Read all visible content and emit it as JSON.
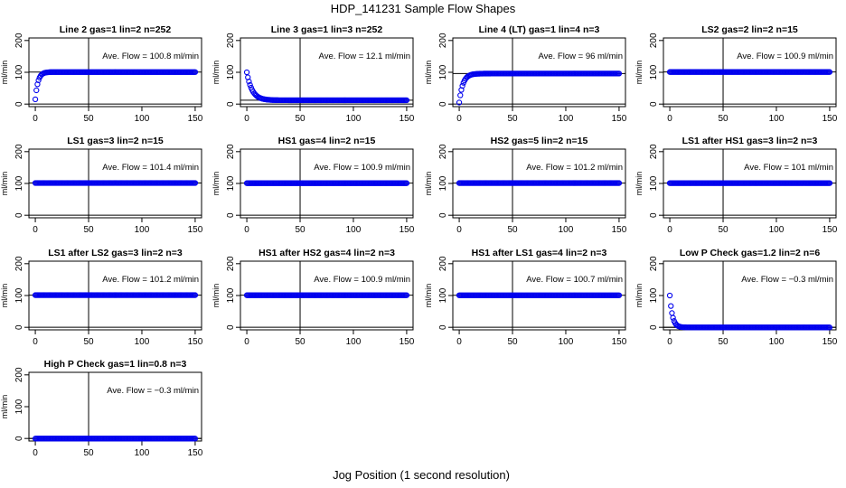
{
  "figure": {
    "title": "HDP_141231  Sample Flow Shapes",
    "xlabel": "Jog Position (1 second resolution)",
    "ylabel": "ml/min",
    "colors": {
      "points": "#0000ee",
      "axes": "#000000",
      "background": "#ffffff"
    }
  },
  "chart_data": [
    {
      "type": "scatter",
      "title": "Line 2 gas=1 lin=2 n=252",
      "annotation": "Ave. Flow =  100.8  ml/min",
      "mean": 100.8,
      "shape": "rise",
      "start": 15,
      "tau": 2.5,
      "xlim": [
        0,
        150
      ],
      "ylim": [
        0,
        200
      ],
      "xticks": [
        0,
        50,
        100,
        150
      ],
      "yticks": [
        0,
        100,
        200
      ],
      "vline": 50
    },
    {
      "type": "scatter",
      "title": "Line 3 gas=1 lin=3 n=252",
      "annotation": "Ave. Flow =  12.1  ml/min",
      "mean": 12.1,
      "shape": "fall",
      "start": 100,
      "end": 12.1,
      "tau": 5,
      "xlim": [
        0,
        150
      ],
      "ylim": [
        0,
        200
      ],
      "xticks": [
        0,
        50,
        100,
        150
      ],
      "yticks": [
        0,
        100,
        200
      ],
      "vline": 50
    },
    {
      "type": "scatter",
      "title": "Line 4 (LT) gas=1 lin=4 n=3",
      "annotation": "Ave. Flow =  96  ml/min",
      "mean": 96,
      "shape": "rise",
      "start": 5,
      "tau": 3.5,
      "xlim": [
        0,
        150
      ],
      "ylim": [
        0,
        200
      ],
      "xticks": [
        0,
        50,
        100,
        150
      ],
      "yticks": [
        0,
        100,
        200
      ],
      "vline": 50
    },
    {
      "type": "scatter",
      "title": "LS2 gas=2 lin=2 n=15",
      "annotation": "Ave. Flow =  100.9  ml/min",
      "mean": 100.9,
      "shape": "flat",
      "xlim": [
        0,
        150
      ],
      "ylim": [
        0,
        200
      ],
      "xticks": [
        0,
        50,
        100,
        150
      ],
      "yticks": [
        0,
        100,
        200
      ],
      "vline": 50
    },
    {
      "type": "scatter",
      "title": "LS1 gas=3 lin=2 n=15",
      "annotation": "Ave. Flow =  101.4  ml/min",
      "mean": 101.4,
      "shape": "flat",
      "xlim": [
        0,
        150
      ],
      "ylim": [
        0,
        200
      ],
      "xticks": [
        0,
        50,
        100,
        150
      ],
      "yticks": [
        0,
        100,
        200
      ],
      "vline": 50
    },
    {
      "type": "scatter",
      "title": "HS1 gas=4 lin=2 n=15",
      "annotation": "Ave. Flow =  100.9  ml/min",
      "mean": 100.9,
      "shape": "flat",
      "xlim": [
        0,
        150
      ],
      "ylim": [
        0,
        200
      ],
      "xticks": [
        0,
        50,
        100,
        150
      ],
      "yticks": [
        0,
        100,
        200
      ],
      "vline": 50
    },
    {
      "type": "scatter",
      "title": "HS2 gas=5 lin=2 n=15",
      "annotation": "Ave. Flow =  101.2  ml/min",
      "mean": 101.2,
      "shape": "flat",
      "xlim": [
        0,
        150
      ],
      "ylim": [
        0,
        200
      ],
      "xticks": [
        0,
        50,
        100,
        150
      ],
      "yticks": [
        0,
        100,
        200
      ],
      "vline": 50
    },
    {
      "type": "scatter",
      "title": "LS1 after HS1 gas=3 lin=2 n=3",
      "annotation": "Ave. Flow =  101  ml/min",
      "mean": 101,
      "shape": "flat",
      "xlim": [
        0,
        150
      ],
      "ylim": [
        0,
        200
      ],
      "xticks": [
        0,
        50,
        100,
        150
      ],
      "yticks": [
        0,
        100,
        200
      ],
      "vline": 50
    },
    {
      "type": "scatter",
      "title": "LS1 after LS2 gas=3 lin=2 n=3",
      "annotation": "Ave. Flow =  101.2  ml/min",
      "mean": 101.2,
      "shape": "flat",
      "xlim": [
        0,
        150
      ],
      "ylim": [
        0,
        200
      ],
      "xticks": [
        0,
        50,
        100,
        150
      ],
      "yticks": [
        0,
        100,
        200
      ],
      "vline": 50
    },
    {
      "type": "scatter",
      "title": "HS1 after HS2 gas=4 lin=2 n=3",
      "annotation": "Ave. Flow =  100.9  ml/min",
      "mean": 100.9,
      "shape": "flat",
      "xlim": [
        0,
        150
      ],
      "ylim": [
        0,
        200
      ],
      "xticks": [
        0,
        50,
        100,
        150
      ],
      "yticks": [
        0,
        100,
        200
      ],
      "vline": 50
    },
    {
      "type": "scatter",
      "title": "HS1 after LS1 gas=4 lin=2 n=3",
      "annotation": "Ave. Flow =  100.7  ml/min",
      "mean": 100.7,
      "shape": "flat",
      "xlim": [
        0,
        150
      ],
      "ylim": [
        0,
        200
      ],
      "xticks": [
        0,
        50,
        100,
        150
      ],
      "yticks": [
        0,
        100,
        200
      ],
      "vline": 50
    },
    {
      "type": "scatter",
      "title": "Low P Check gas=1.2 lin=2 n=6",
      "annotation": "Ave. Flow =  −0.3  ml/min",
      "mean": -0.3,
      "shape": "fall",
      "start": 100,
      "end": -0.3,
      "tau": 2.5,
      "xlim": [
        0,
        150
      ],
      "ylim": [
        0,
        200
      ],
      "xticks": [
        0,
        50,
        100,
        150
      ],
      "yticks": [
        0,
        100,
        200
      ],
      "vline": 50
    },
    {
      "type": "scatter",
      "title": "High P Check gas=1 lin=0.8 n=3",
      "annotation": "Ave. Flow =  −0.3  ml/min",
      "mean": -0.3,
      "shape": "flat",
      "xlim": [
        0,
        150
      ],
      "ylim": [
        0,
        200
      ],
      "xticks": [
        0,
        50,
        100,
        150
      ],
      "yticks": [
        0,
        100,
        200
      ],
      "vline": 50
    }
  ]
}
